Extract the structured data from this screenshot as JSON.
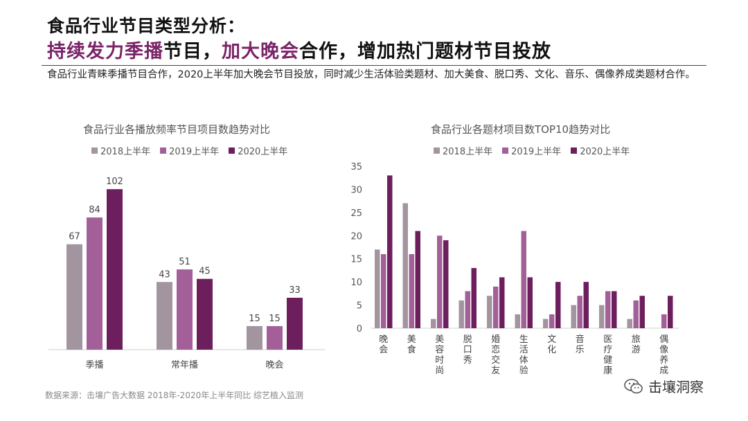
{
  "header": {
    "title_line1": "食品行业节目类型分析：",
    "title_line2_hl1": "持续发力季播",
    "title_line2_t1": "节目，",
    "title_line2_hl2": "加大晚会",
    "title_line2_t2": "合作，增加热门题材节目投放",
    "description": "食品行业青睐季播节目合作，2020上半年加大晚会节目投放，同时减少生活体验类题材、加大美食、脱口秀、文化、音乐、偶像养成类题材合作。"
  },
  "colors": {
    "s2018": "#a3959f",
    "s2019": "#a35f98",
    "s2020": "#6d1f5d",
    "accent": "#7b2468"
  },
  "chart_data": [
    {
      "type": "bar",
      "title": "食品行业各播放频率节目项目数趋势对比",
      "categories": [
        "季播",
        "常年播",
        "晚会"
      ],
      "series": [
        {
          "name": "2018上半年",
          "values": [
            67,
            43,
            15
          ]
        },
        {
          "name": "2019上半年",
          "values": [
            84,
            51,
            15
          ]
        },
        {
          "name": "2020上半年",
          "values": [
            102,
            45,
            33
          ]
        }
      ],
      "data_labels": true,
      "ylim": [
        0,
        110
      ],
      "legend": "top"
    },
    {
      "type": "bar",
      "title": "食品行业各题材项目数TOP10趋势对比",
      "categories": [
        "晚会",
        "美食",
        "美容时尚",
        "脱口秀",
        "婚恋交友",
        "生活体验",
        "文化",
        "音乐",
        "医疗健康",
        "旅游",
        "偶像养成"
      ],
      "series": [
        {
          "name": "2018上半年",
          "values": [
            17,
            27,
            2,
            6,
            7,
            3,
            2,
            5,
            5,
            2,
            0
          ]
        },
        {
          "name": "2019上半年",
          "values": [
            16,
            16,
            20,
            8,
            9,
            21,
            3,
            7,
            8,
            6,
            3
          ]
        },
        {
          "name": "2020上半年",
          "values": [
            33,
            21,
            19,
            13,
            11,
            11,
            10,
            10,
            8,
            7,
            7
          ]
        }
      ],
      "yticks": [
        "0",
        "5",
        "10",
        "15",
        "20",
        "25",
        "30",
        "35"
      ],
      "ylim": [
        0,
        35
      ],
      "legend": "top"
    }
  ],
  "footer": {
    "source": "数据来源：击壤广告大数据 2018年-2020年上半年同比 综艺植入监测",
    "watermark": "击壤洞察"
  }
}
